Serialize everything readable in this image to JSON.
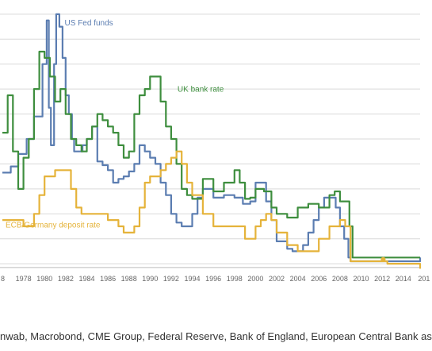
{
  "chart_data": {
    "type": "line",
    "title": "",
    "xlabel": "",
    "ylabel": "",
    "xlim": [
      1976,
      2015.6
    ],
    "ylim": [
      -0.5,
      20.5
    ],
    "grid": "horizontal",
    "tick_years": [
      1978,
      1980,
      1982,
      1984,
      1986,
      1988,
      1990,
      1992,
      1994,
      1996,
      1998,
      2000,
      2002,
      2004,
      2006,
      2008,
      2010,
      2012,
      2014
    ],
    "tick_labels": [
      "1978",
      "1980",
      "1982",
      "1984",
      "1986",
      "1988",
      "1990",
      "1992",
      "1994",
      "1996",
      "1998",
      "2000",
      "2002",
      "2004",
      "2006",
      "2008",
      "2010",
      "2012",
      "2014",
      "201"
    ],
    "edge_tick_label": "8",
    "series": [
      {
        "name": "US Fed funds",
        "color": "#5b7db1",
        "x": [
          1976.0,
          1976.8,
          1977.5,
          1978.3,
          1979.0,
          1979.8,
          1980.2,
          1980.4,
          1980.6,
          1980.9,
          1981.1,
          1981.4,
          1981.7,
          1982.0,
          1982.3,
          1982.6,
          1982.8,
          1983.2,
          1983.6,
          1984.0,
          1984.5,
          1985.0,
          1985.5,
          1986.0,
          1986.5,
          1987.0,
          1987.5,
          1988.0,
          1988.5,
          1989.0,
          1989.5,
          1990.0,
          1990.5,
          1991.0,
          1991.5,
          1992.0,
          1992.5,
          1993.0,
          1993.5,
          1994.0,
          1994.5,
          1995.0,
          1996.0,
          1997.0,
          1998.0,
          1998.8,
          1999.5,
          2000.0,
          2000.5,
          2001.0,
          2001.5,
          2002.0,
          2003.0,
          2003.5,
          2004.0,
          2004.5,
          2005.0,
          2005.5,
          2006.0,
          2006.5,
          2007.0,
          2007.6,
          2008.0,
          2008.4,
          2008.8,
          2009.0,
          2010.0,
          2012.0,
          2014.0,
          2015.0,
          2015.6
        ],
        "y": [
          7.3,
          7.8,
          8.8,
          10.0,
          11.8,
          16.0,
          19.5,
          12.5,
          9.5,
          16.0,
          20.0,
          19.0,
          16.5,
          13.5,
          12.0,
          10.0,
          9.0,
          9.0,
          9.5,
          10.0,
          11.0,
          8.2,
          7.9,
          7.5,
          6.5,
          6.8,
          7.0,
          7.4,
          8.0,
          9.5,
          9.0,
          8.5,
          8.0,
          6.5,
          5.5,
          4.0,
          3.3,
          3.0,
          3.0,
          4.0,
          5.3,
          6.0,
          5.3,
          5.5,
          5.3,
          4.8,
          5.0,
          6.5,
          6.5,
          5.0,
          3.5,
          1.8,
          1.2,
          1.0,
          1.0,
          1.5,
          2.5,
          3.5,
          4.5,
          5.3,
          5.3,
          4.5,
          3.0,
          2.0,
          0.5,
          0.2,
          0.2,
          0.2,
          0.2,
          0.2,
          0.5
        ]
      },
      {
        "name": "UK bank rate",
        "color": "#3e8e3e",
        "x": [
          1976.0,
          1976.5,
          1977.0,
          1977.5,
          1978.0,
          1978.5,
          1979.0,
          1979.5,
          1980.0,
          1980.5,
          1981.0,
          1981.5,
          1982.0,
          1982.5,
          1983.0,
          1983.5,
          1984.0,
          1984.5,
          1985.0,
          1985.5,
          1986.0,
          1986.5,
          1987.0,
          1987.5,
          1988.0,
          1988.5,
          1989.0,
          1989.5,
          1990.0,
          1990.5,
          1991.0,
          1991.5,
          1992.0,
          1992.5,
          1993.0,
          1993.5,
          1994.0,
          1995.0,
          1996.0,
          1997.0,
          1998.0,
          1998.5,
          1999.0,
          1999.5,
          2000.0,
          2000.8,
          2001.5,
          2002.0,
          2003.0,
          2004.0,
          2005.0,
          2006.0,
          2007.0,
          2007.5,
          2008.0,
          2008.5,
          2008.9,
          2009.2,
          2012.0,
          2014.0,
          2015.6
        ],
        "y": [
          10.5,
          13.5,
          9.0,
          6.0,
          8.5,
          10.0,
          14.0,
          17.0,
          16.5,
          15.0,
          13.0,
          14.0,
          12.0,
          10.0,
          9.5,
          9.0,
          10.0,
          11.0,
          12.0,
          11.5,
          11.0,
          10.5,
          9.5,
          8.5,
          9.0,
          12.0,
          13.5,
          14.0,
          15.0,
          15.0,
          13.0,
          11.0,
          10.0,
          8.0,
          6.0,
          5.5,
          5.2,
          6.8,
          5.8,
          6.5,
          7.5,
          6.5,
          5.2,
          5.3,
          6.0,
          5.8,
          4.5,
          4.0,
          3.7,
          4.5,
          4.8,
          4.5,
          5.5,
          5.8,
          5.0,
          5.0,
          3.0,
          0.5,
          0.5,
          0.5,
          0.5
        ]
      },
      {
        "name": "ECB/Germany deposit rate",
        "color": "#e5b33a",
        "x": [
          1976.0,
          1977.0,
          1978.0,
          1979.0,
          1979.5,
          1980.0,
          1981.0,
          1982.0,
          1982.5,
          1983.0,
          1983.5,
          1984.0,
          1985.0,
          1986.0,
          1987.0,
          1987.5,
          1988.0,
          1988.5,
          1989.0,
          1989.5,
          1990.0,
          1991.0,
          1991.5,
          1992.0,
          1992.5,
          1993.0,
          1993.5,
          1994.0,
          1995.0,
          1996.0,
          1997.0,
          1998.0,
          1999.0,
          1999.5,
          2000.0,
          2000.5,
          2001.0,
          2001.5,
          2002.0,
          2003.0,
          2004.0,
          2005.0,
          2006.0,
          2007.0,
          2008.0,
          2008.5,
          2009.0,
          2012.0,
          2012.5,
          2014.0,
          2015.6
        ],
        "y": [
          3.5,
          3.5,
          3.0,
          4.0,
          5.5,
          7.0,
          7.5,
          7.5,
          6.0,
          4.5,
          4.0,
          4.0,
          4.0,
          3.5,
          3.0,
          2.5,
          2.5,
          3.0,
          4.5,
          6.5,
          7.0,
          7.5,
          8.0,
          8.5,
          9.0,
          8.0,
          6.5,
          5.5,
          4.0,
          3.0,
          3.0,
          3.0,
          2.0,
          2.0,
          3.0,
          3.5,
          4.0,
          3.5,
          2.5,
          1.5,
          1.0,
          1.0,
          2.0,
          3.0,
          3.5,
          3.0,
          0.2,
          0.2,
          0.0,
          0.0,
          -0.4
        ]
      }
    ],
    "annotations": [
      {
        "text": "US Fed funds",
        "series": 0,
        "x": 1981.9,
        "y": 19.1
      },
      {
        "text": "UK bank rate",
        "series": 1,
        "x": 1992.6,
        "y": 13.8
      },
      {
        "text": "ECB/Germany deposit rate",
        "series": 2,
        "x": 1976.3,
        "y": 2.9
      }
    ],
    "markers": [
      {
        "series": 2,
        "x": 2012.1,
        "y": 0.35
      }
    ]
  },
  "source_text": "nwab, Macrobond, CME Group, Federal Reserve, Bank of England, European Central Bank as"
}
